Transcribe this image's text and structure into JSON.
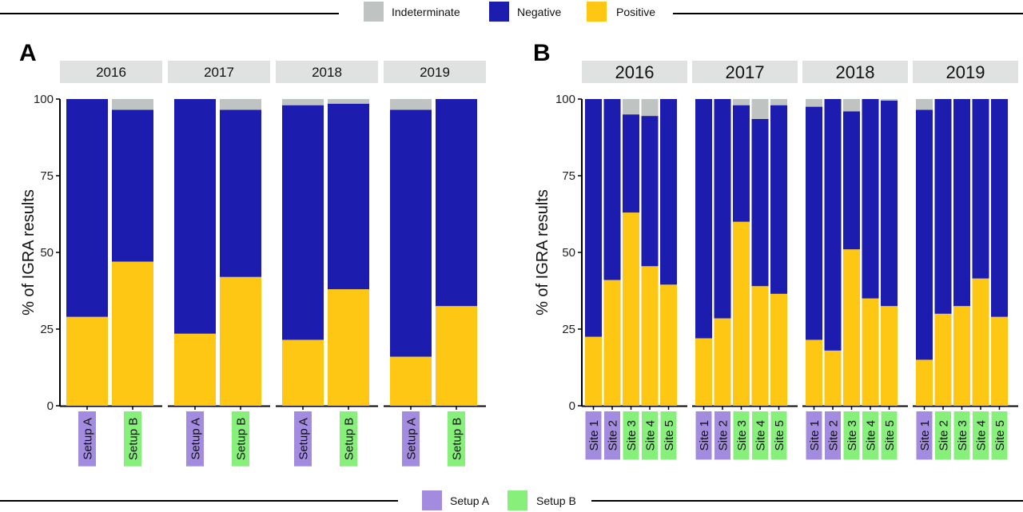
{
  "legend_top": {
    "items": [
      {
        "label": "Indeterminate",
        "color": "#bfc4c3"
      },
      {
        "label": "Negative",
        "color": "#1c1cae"
      },
      {
        "label": "Positive",
        "color": "#fec714"
      }
    ]
  },
  "legend_bottom": {
    "items": [
      {
        "label": "Setup A",
        "color": "#a38ce0"
      },
      {
        "label": "Setup B",
        "color": "#86f07a"
      }
    ]
  },
  "panels": [
    {
      "letter": "A"
    },
    {
      "letter": "B"
    }
  ],
  "chart_data": [
    {
      "type": "bar",
      "stacked": true,
      "panel": "A",
      "ylabel": "% of IGRA results",
      "ylim": [
        0,
        100
      ],
      "yticks": [
        0,
        25,
        50,
        75,
        100
      ],
      "stack_order": [
        "Positive",
        "Negative",
        "Indeterminate"
      ],
      "groups": [
        {
          "facet": "2016",
          "bars": [
            {
              "label": "Setup A",
              "setup": "A",
              "positive": 29,
              "negative": 71,
              "indeterminate": 0
            },
            {
              "label": "Setup B",
              "setup": "B",
              "positive": 47,
              "negative": 49.5,
              "indeterminate": 3.5
            }
          ]
        },
        {
          "facet": "2017",
          "bars": [
            {
              "label": "Setup A",
              "setup": "A",
              "positive": 23.5,
              "negative": 76.5,
              "indeterminate": 0
            },
            {
              "label": "Setup B",
              "setup": "B",
              "positive": 42,
              "negative": 54.5,
              "indeterminate": 3.5
            }
          ]
        },
        {
          "facet": "2018",
          "bars": [
            {
              "label": "Setup A",
              "setup": "A",
              "positive": 21.5,
              "negative": 76.5,
              "indeterminate": 2
            },
            {
              "label": "Setup B",
              "setup": "B",
              "positive": 38,
              "negative": 60.5,
              "indeterminate": 1.5
            }
          ]
        },
        {
          "facet": "2019",
          "bars": [
            {
              "label": "Setup A",
              "setup": "A",
              "positive": 16,
              "negative": 80.5,
              "indeterminate": 3.5
            },
            {
              "label": "Setup B",
              "setup": "B",
              "positive": 32.5,
              "negative": 67.5,
              "indeterminate": 0
            }
          ]
        }
      ]
    },
    {
      "type": "bar",
      "stacked": true,
      "panel": "B",
      "ylabel": "% of IGRA results",
      "ylim": [
        0,
        100
      ],
      "yticks": [
        0,
        25,
        50,
        75,
        100
      ],
      "stack_order": [
        "Positive",
        "Negative",
        "Indeterminate"
      ],
      "groups": [
        {
          "facet": "2016",
          "bars": [
            {
              "label": "Site 1",
              "setup": "A",
              "positive": 22.5,
              "negative": 77.5,
              "indeterminate": 0
            },
            {
              "label": "Site 2",
              "setup": "A",
              "positive": 41,
              "negative": 59,
              "indeterminate": 0
            },
            {
              "label": "Site 3",
              "setup": "B",
              "positive": 63,
              "negative": 32,
              "indeterminate": 5
            },
            {
              "label": "Site 4",
              "setup": "B",
              "positive": 45.5,
              "negative": 49,
              "indeterminate": 5.5
            },
            {
              "label": "Site 5",
              "setup": "B",
              "positive": 39.5,
              "negative": 60.5,
              "indeterminate": 0
            }
          ]
        },
        {
          "facet": "2017",
          "bars": [
            {
              "label": "Site 1",
              "setup": "A",
              "positive": 22,
              "negative": 78,
              "indeterminate": 0
            },
            {
              "label": "Site 2",
              "setup": "A",
              "positive": 28.5,
              "negative": 71.5,
              "indeterminate": 0
            },
            {
              "label": "Site 3",
              "setup": "B",
              "positive": 60,
              "negative": 38,
              "indeterminate": 2
            },
            {
              "label": "Site 4",
              "setup": "B",
              "positive": 39,
              "negative": 54.5,
              "indeterminate": 6.5
            },
            {
              "label": "Site 5",
              "setup": "B",
              "positive": 36.5,
              "negative": 61.5,
              "indeterminate": 2
            }
          ]
        },
        {
          "facet": "2018",
          "bars": [
            {
              "label": "Site 1",
              "setup": "A",
              "positive": 21.5,
              "negative": 76,
              "indeterminate": 2.5
            },
            {
              "label": "Site 2",
              "setup": "A",
              "positive": 18,
              "negative": 82,
              "indeterminate": 0
            },
            {
              "label": "Site 3",
              "setup": "B",
              "positive": 51,
              "negative": 45,
              "indeterminate": 4
            },
            {
              "label": "Site 4",
              "setup": "B",
              "positive": 35,
              "negative": 65,
              "indeterminate": 0
            },
            {
              "label": "Site 5",
              "setup": "B",
              "positive": 32.5,
              "negative": 67,
              "indeterminate": 0.5
            }
          ]
        },
        {
          "facet": "2019",
          "bars": [
            {
              "label": "Site 1",
              "setup": "A",
              "positive": 15,
              "negative": 81.5,
              "indeterminate": 3.5
            },
            {
              "label": "Site 2",
              "setup": "B",
              "positive": 30,
              "negative": 70,
              "indeterminate": 0
            },
            {
              "label": "Site 3",
              "setup": "B",
              "positive": 32.5,
              "negative": 67.5,
              "indeterminate": 0
            },
            {
              "label": "Site 4",
              "setup": "B",
              "positive": 41.5,
              "negative": 58.5,
              "indeterminate": 0
            },
            {
              "label": "Site 5",
              "setup": "B",
              "positive": 29,
              "negative": 71,
              "indeterminate": 0
            }
          ]
        }
      ]
    }
  ]
}
